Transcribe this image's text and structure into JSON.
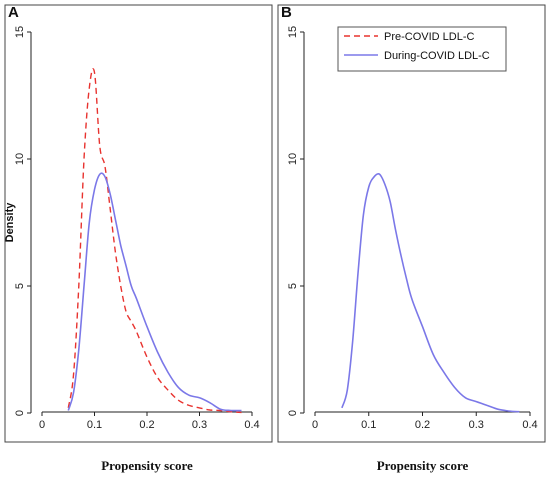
{
  "colors": {
    "pre": "#e8332f",
    "during": "#7b78e8",
    "axis": "#222222",
    "frame": "#444444"
  },
  "chart_data": [
    {
      "type": "line",
      "panel": "A",
      "xlabel": "Propensity score",
      "ylabel": "Density",
      "xlim": [
        0,
        0.4
      ],
      "ylim": [
        0,
        15
      ],
      "xticks": [
        0,
        0.1,
        0.2,
        0.3,
        0.4
      ],
      "xtick_labels": [
        "0",
        "0.1",
        "0.2",
        "0.3",
        "0.4"
      ],
      "yticks": [
        0,
        5,
        10,
        15
      ],
      "ytick_labels": [
        "0",
        "5",
        "10",
        "15"
      ],
      "grid": false,
      "series": [
        {
          "name": "Pre-COVID LDL-C",
          "style": "dashed",
          "x": [
            0.05,
            0.06,
            0.07,
            0.08,
            0.09,
            0.1,
            0.11,
            0.12,
            0.13,
            0.14,
            0.15,
            0.16,
            0.17,
            0.18,
            0.2,
            0.22,
            0.24,
            0.26,
            0.28,
            0.3,
            0.32,
            0.34,
            0.36,
            0.38
          ],
          "y": [
            0.2,
            1.5,
            5.0,
            10.0,
            12.8,
            13.4,
            10.5,
            9.7,
            8.0,
            6.3,
            5.0,
            4.0,
            3.6,
            3.2,
            2.2,
            1.4,
            0.9,
            0.5,
            0.3,
            0.2,
            0.12,
            0.1,
            0.05,
            0.02
          ]
        },
        {
          "name": "During-COVID LDL-C",
          "style": "solid",
          "x": [
            0.05,
            0.06,
            0.07,
            0.08,
            0.09,
            0.1,
            0.11,
            0.12,
            0.13,
            0.14,
            0.15,
            0.16,
            0.17,
            0.18,
            0.2,
            0.22,
            0.24,
            0.26,
            0.28,
            0.3,
            0.32,
            0.34,
            0.36,
            0.38
          ],
          "y": [
            0.1,
            0.8,
            2.5,
            5.0,
            7.5,
            8.8,
            9.4,
            9.3,
            8.6,
            7.6,
            6.6,
            5.8,
            5.0,
            4.5,
            3.4,
            2.4,
            1.6,
            1.0,
            0.7,
            0.6,
            0.4,
            0.15,
            0.1,
            0.1
          ]
        }
      ]
    },
    {
      "type": "line",
      "panel": "B",
      "xlabel": "Propensity score",
      "ylabel": "",
      "xlim": [
        0,
        0.4
      ],
      "ylim": [
        0,
        15
      ],
      "xticks": [
        0,
        0.1,
        0.2,
        0.3,
        0.4
      ],
      "xtick_labels": [
        "0",
        "0.1",
        "0.2",
        "0.3",
        "0.4"
      ],
      "yticks": [
        0,
        5,
        10,
        15
      ],
      "ytick_labels": [
        "0",
        "5",
        "10",
        "15"
      ],
      "grid": false,
      "legend": {
        "placement": "top-right",
        "entries": [
          "Pre-COVID LDL-C",
          "During-COVID LDL-C"
        ]
      },
      "series": [
        {
          "name": "During-COVID LDL-C",
          "style": "solid",
          "x": [
            0.05,
            0.06,
            0.07,
            0.08,
            0.09,
            0.1,
            0.11,
            0.12,
            0.13,
            0.14,
            0.15,
            0.16,
            0.17,
            0.18,
            0.2,
            0.22,
            0.24,
            0.26,
            0.28,
            0.3,
            0.32,
            0.34,
            0.36,
            0.38
          ],
          "y": [
            0.2,
            0.9,
            2.8,
            5.5,
            7.8,
            8.9,
            9.3,
            9.4,
            9.0,
            8.3,
            7.2,
            6.2,
            5.3,
            4.5,
            3.4,
            2.3,
            1.6,
            1.0,
            0.6,
            0.45,
            0.3,
            0.15,
            0.08,
            0.05
          ]
        }
      ]
    }
  ]
}
